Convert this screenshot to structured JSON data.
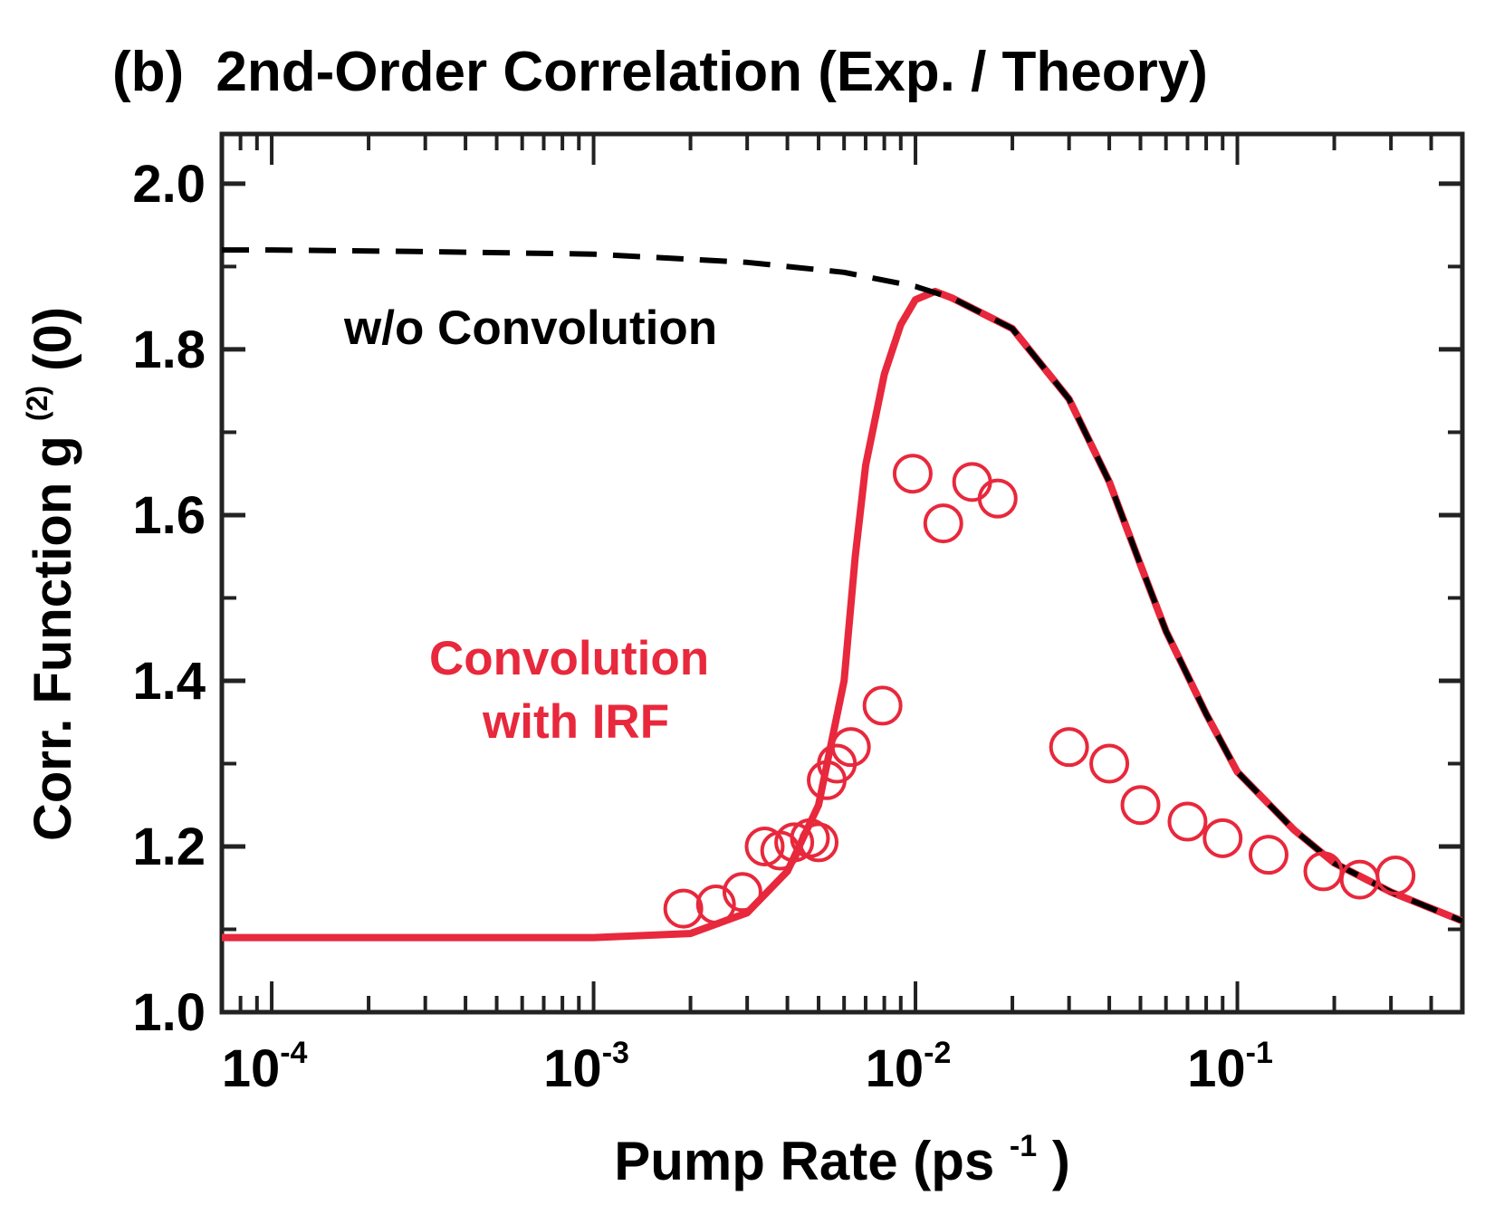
{
  "title": {
    "prefix": "(b)",
    "text": "2nd-Order Correlation (Exp. / Theory)"
  },
  "chart_data": {
    "type": "line",
    "xlabel": "Pump Rate (ps",
    "xlabel_sup": "-1",
    "xlabel_suffix": ")",
    "ylabel": "Corr. Function  g",
    "ylabel_sup": "(2)",
    "ylabel_suffix": "(0)",
    "xscale": "log",
    "xlim": [
      7e-05,
      0.5
    ],
    "ylim": [
      1.0,
      2.06
    ],
    "x_ticks": [
      {
        "value": 0.0001,
        "base": "10",
        "exp": "-4"
      },
      {
        "value": 0.001,
        "base": "10",
        "exp": "-3"
      },
      {
        "value": 0.01,
        "base": "10",
        "exp": "-2"
      },
      {
        "value": 0.1,
        "base": "10",
        "exp": "-1"
      }
    ],
    "y_ticks": [
      {
        "value": 1.0,
        "label": "1.0"
      },
      {
        "value": 1.2,
        "label": "1.2"
      },
      {
        "value": 1.4,
        "label": "1.4"
      },
      {
        "value": 1.6,
        "label": "1.6"
      },
      {
        "value": 1.8,
        "label": "1.8"
      },
      {
        "value": 2.0,
        "label": "2.0"
      }
    ],
    "y_minor_ticks": [
      1.1,
      1.3,
      1.5,
      1.7,
      1.9
    ],
    "annotations": [
      {
        "text": "w/o Convolution",
        "color": "#000000"
      },
      {
        "text": "Convolution",
        "color": "#e8283c"
      },
      {
        "text": "with IRF",
        "color": "#e8283c"
      }
    ],
    "series": [
      {
        "style": "dashed-line",
        "color": "#000000",
        "x": [
          7e-05,
          0.0001,
          0.0003,
          0.001,
          0.003,
          0.006,
          0.01,
          0.013,
          0.02,
          0.03,
          0.04,
          0.05,
          0.06,
          0.08,
          0.1,
          0.15,
          0.2,
          0.3,
          0.5
        ],
        "y": [
          1.92,
          1.92,
          1.918,
          1.915,
          1.905,
          1.893,
          1.876,
          1.862,
          1.825,
          1.74,
          1.64,
          1.54,
          1.46,
          1.36,
          1.29,
          1.22,
          1.18,
          1.145,
          1.11
        ]
      },
      {
        "style": "solid-line",
        "color": "#e8283c",
        "x": [
          7e-05,
          0.0003,
          0.001,
          0.002,
          0.003,
          0.004,
          0.005,
          0.006,
          0.0065,
          0.007,
          0.008,
          0.009,
          0.01,
          0.0115,
          0.013,
          0.02,
          0.03,
          0.04,
          0.05,
          0.06,
          0.08,
          0.1,
          0.15,
          0.2,
          0.3,
          0.5
        ],
        "y": [
          1.09,
          1.09,
          1.09,
          1.095,
          1.12,
          1.17,
          1.25,
          1.4,
          1.55,
          1.66,
          1.77,
          1.83,
          1.86,
          1.87,
          1.862,
          1.825,
          1.74,
          1.64,
          1.54,
          1.46,
          1.36,
          1.29,
          1.22,
          1.18,
          1.145,
          1.11
        ]
      },
      {
        "style": "open-circles",
        "color": "#e8283c",
        "x": [
          0.0019,
          0.0024,
          0.0029,
          0.0034,
          0.0038,
          0.0042,
          0.0047,
          0.005,
          0.0053,
          0.0057,
          0.0063,
          0.0079,
          0.0098,
          0.0122,
          0.015,
          0.018,
          0.03,
          0.04,
          0.05,
          0.07,
          0.09,
          0.125,
          0.185,
          0.24,
          0.31
        ],
        "y": [
          1.125,
          1.13,
          1.145,
          1.2,
          1.195,
          1.205,
          1.21,
          1.205,
          1.28,
          1.3,
          1.32,
          1.37,
          1.65,
          1.59,
          1.64,
          1.62,
          1.32,
          1.3,
          1.25,
          1.23,
          1.21,
          1.19,
          1.17,
          1.16,
          1.165
        ]
      }
    ]
  }
}
